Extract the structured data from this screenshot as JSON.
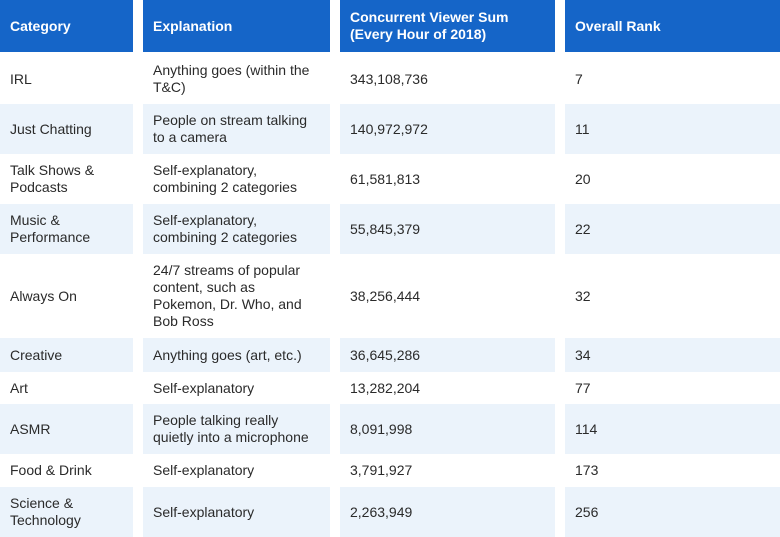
{
  "table": {
    "headers": [
      "Category",
      "Explanation",
      "Concurrent Viewer Sum (Every Hour of 2018)",
      "Overall Rank"
    ],
    "rows": [
      {
        "category": "IRL",
        "explanation": "Anything goes (within the T&C)",
        "viewer_sum": "343,108,736",
        "rank": "7"
      },
      {
        "category": "Just Chatting",
        "explanation": "People on stream talking to a camera",
        "viewer_sum": "140,972,972",
        "rank": "11"
      },
      {
        "category": "Talk Shows & Podcasts",
        "explanation": "Self-explanatory, combining 2 categories",
        "viewer_sum": "61,581,813",
        "rank": "20"
      },
      {
        "category": "Music & Performance",
        "explanation": "Self-explanatory, combining 2 categories",
        "viewer_sum": "55,845,379",
        "rank": "22"
      },
      {
        "category": "Always On",
        "explanation": "24/7 streams of popular content, such as Pokemon, Dr. Who, and Bob Ross",
        "viewer_sum": "38,256,444",
        "rank": "32"
      },
      {
        "category": "Creative",
        "explanation": "Anything goes (art, etc.)",
        "viewer_sum": "36,645,286",
        "rank": "34"
      },
      {
        "category": "Art",
        "explanation": "Self-explanatory",
        "viewer_sum": "13,282,204",
        "rank": "77"
      },
      {
        "category": "ASMR",
        "explanation": "People talking really quietly into a microphone",
        "viewer_sum": "8,091,998",
        "rank": "114"
      },
      {
        "category": "Food & Drink",
        "explanation": "Self-explanatory",
        "viewer_sum": "3,791,927",
        "rank": "173"
      },
      {
        "category": "Science & Technology",
        "explanation": "Self-explanatory",
        "viewer_sum": "2,263,949",
        "rank": "256"
      }
    ]
  }
}
